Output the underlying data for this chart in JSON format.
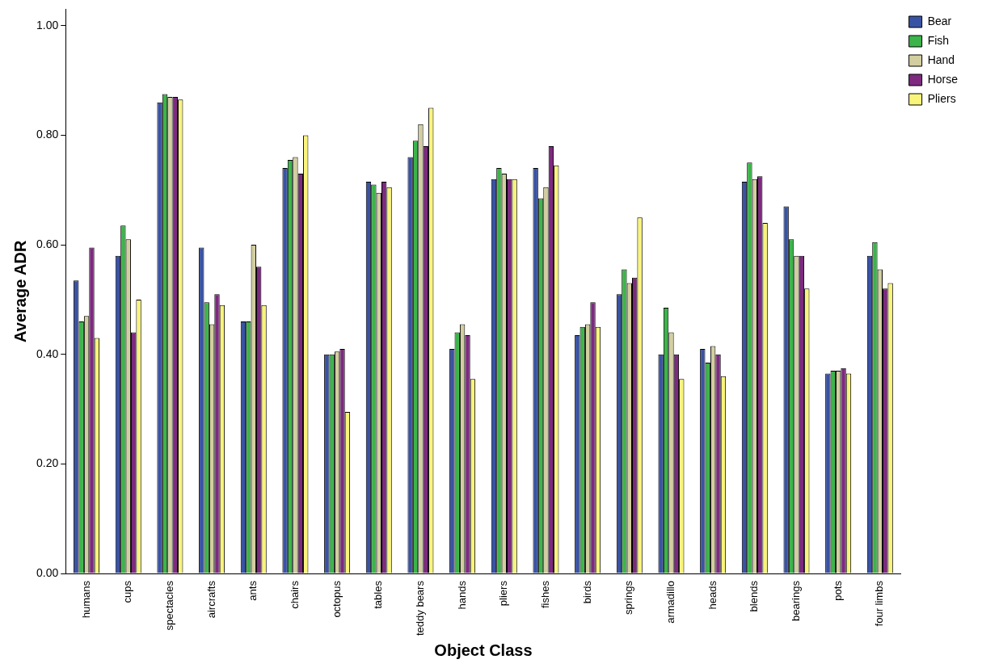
{
  "chart_data": {
    "type": "bar",
    "xlabel": "Object Class",
    "ylabel": "Average ADR",
    "categories": [
      "humans",
      "cups",
      "spectacles",
      "aircrafts",
      "ants",
      "chairs",
      "octopus",
      "tables",
      "teddy bears",
      "hands",
      "pliers",
      "fishes",
      "birds",
      "springs",
      "armadillo",
      "heads",
      "blends",
      "bearings",
      "pots",
      "four limbs"
    ],
    "series": [
      {
        "name": "Bear",
        "color": "#3953a4",
        "values": [
          0.535,
          0.58,
          0.86,
          0.595,
          0.46,
          0.74,
          0.4,
          0.715,
          0.76,
          0.41,
          0.72,
          0.74,
          0.435,
          0.51,
          0.4,
          0.41,
          0.715,
          0.67,
          0.365,
          0.58
        ]
      },
      {
        "name": "Fish",
        "color": "#3cb44a",
        "values": [
          0.46,
          0.635,
          0.875,
          0.495,
          0.46,
          0.755,
          0.4,
          0.71,
          0.79,
          0.44,
          0.74,
          0.685,
          0.45,
          0.555,
          0.485,
          0.385,
          0.75,
          0.61,
          0.37,
          0.605
        ]
      },
      {
        "name": "Hand",
        "color": "#d3ce9f",
        "values": [
          0.47,
          0.61,
          0.87,
          0.455,
          0.6,
          0.76,
          0.405,
          0.695,
          0.82,
          0.455,
          0.73,
          0.705,
          0.455,
          0.53,
          0.44,
          0.415,
          0.72,
          0.58,
          0.37,
          0.555
        ]
      },
      {
        "name": "Horse",
        "color": "#7d2a7f",
        "values": [
          0.595,
          0.44,
          0.87,
          0.51,
          0.56,
          0.73,
          0.41,
          0.715,
          0.78,
          0.435,
          0.72,
          0.78,
          0.495,
          0.54,
          0.4,
          0.4,
          0.725,
          0.58,
          0.375,
          0.52
        ]
      },
      {
        "name": "Pliers",
        "color": "#f9f47a",
        "values": [
          0.43,
          0.5,
          0.865,
          0.49,
          0.49,
          0.8,
          0.295,
          0.705,
          0.85,
          0.355,
          0.72,
          0.745,
          0.45,
          0.65,
          0.355,
          0.36,
          0.64,
          0.52,
          0.365,
          0.53
        ]
      }
    ],
    "ylim": [
      0,
      1.03
    ],
    "yticks": [
      {
        "value": 0,
        "label": "0.00"
      },
      {
        "value": 0.2,
        "label": "0.20"
      },
      {
        "value": 0.4,
        "label": "0.40"
      },
      {
        "value": 0.6,
        "label": "0.60"
      },
      {
        "value": 0.8,
        "label": "0.80"
      },
      {
        "value": 1,
        "label": "1.00"
      }
    ],
    "grid": false,
    "legend": "top right"
  }
}
